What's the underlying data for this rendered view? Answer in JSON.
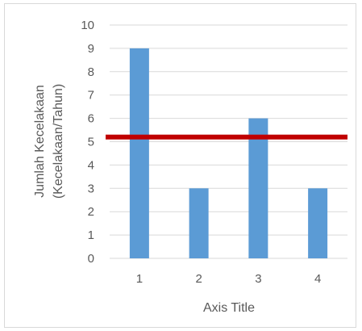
{
  "chart_data": {
    "type": "bar",
    "categories": [
      "1",
      "2",
      "3",
      "4"
    ],
    "values": [
      9,
      3,
      6,
      3
    ],
    "xlabel": "Axis Title",
    "ylabel_lines": [
      "Jumlah Kecelakaan",
      "(Kecelakaan/Tahun)"
    ],
    "ylim": [
      0,
      10
    ],
    "yticks": [
      "0",
      "1",
      "2",
      "3",
      "4",
      "5",
      "6",
      "7",
      "8",
      "9",
      "10"
    ],
    "reference_line_value": 5.2,
    "grid": true,
    "colors": {
      "bar": "#5b9bd5",
      "reference_line": "#c00000",
      "grid": "#d9d9d9"
    }
  }
}
